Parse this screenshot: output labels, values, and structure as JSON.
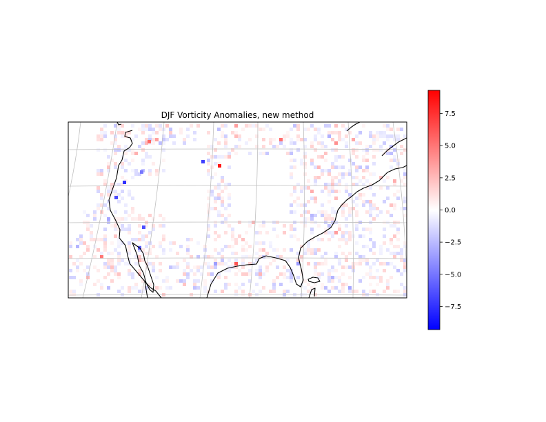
{
  "chart_data": {
    "type": "heatmap",
    "title": "DJF Vorticity Anomalies, new method",
    "projection": "lambert-conformal",
    "region": "contiguous United States",
    "coastlines": true,
    "gridlines": true,
    "colormap": "bwr",
    "color_scale": {
      "min": -9.3,
      "max": 9.3,
      "ticks": [
        -7.5,
        -5.0,
        -2.5,
        0.0,
        2.5,
        5.0,
        7.5
      ],
      "tick_labels": [
        "−7.5",
        "−5.0",
        "−2.5",
        "0.0",
        "2.5",
        "5.0",
        "7.5"
      ],
      "placement": "right"
    },
    "colors": {
      "low": "#0000ff",
      "mid": "#ffffff",
      "high": "#ff0000",
      "coastline": "#000000",
      "grid": "#bfbfbf"
    }
  }
}
